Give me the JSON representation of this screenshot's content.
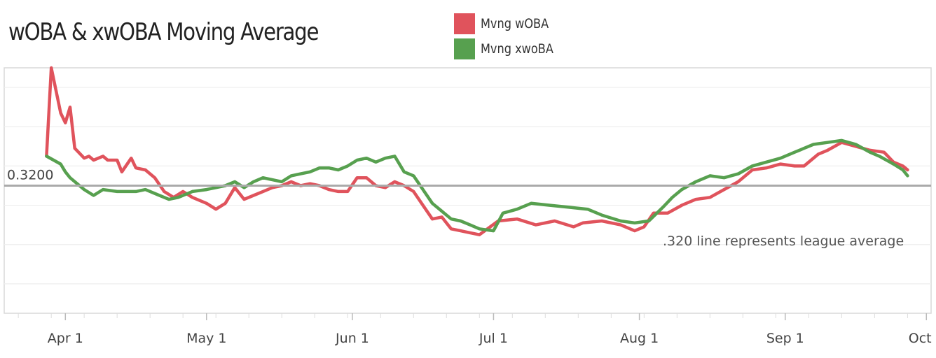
{
  "chart_data": {
    "type": "line",
    "title": "wOBA & xwOBA Moving Average",
    "xlabel": "",
    "ylabel": "",
    "x_ticks": [
      "Apr 1",
      "May 1",
      "Jun 1",
      "Jul 1",
      "Aug 1",
      "Sep 1",
      "Oct 1"
    ],
    "xlim": [
      "2020-03-19",
      "2020-10-02"
    ],
    "ylim": [
      0.255,
      0.38
    ],
    "grid": "horizontal",
    "legend_position": "top-center",
    "reference_line": {
      "value": 0.32,
      "label": "0.3200",
      "color": "#aaaaaa"
    },
    "annotation": ".320 line represents league average",
    "series": [
      {
        "name": "Mvng wOBA",
        "color": "#e0535c",
        "points": [
          [
            "2020-03-28",
            0.335
          ],
          [
            "2020-03-29",
            0.38
          ],
          [
            "2020-03-31",
            0.357
          ],
          [
            "2020-04-01",
            0.352
          ],
          [
            "2020-04-02",
            0.36
          ],
          [
            "2020-04-03",
            0.339
          ],
          [
            "2020-04-05",
            0.334
          ],
          [
            "2020-04-06",
            0.335
          ],
          [
            "2020-04-07",
            0.333
          ],
          [
            "2020-04-09",
            0.335
          ],
          [
            "2020-04-10",
            0.333
          ],
          [
            "2020-04-12",
            0.333
          ],
          [
            "2020-04-13",
            0.327
          ],
          [
            "2020-04-15",
            0.334
          ],
          [
            "2020-04-16",
            0.329
          ],
          [
            "2020-04-18",
            0.328
          ],
          [
            "2020-04-20",
            0.324
          ],
          [
            "2020-04-22",
            0.317
          ],
          [
            "2020-04-24",
            0.314
          ],
          [
            "2020-04-26",
            0.317
          ],
          [
            "2020-04-28",
            0.314
          ],
          [
            "2020-05-01",
            0.311
          ],
          [
            "2020-05-03",
            0.308
          ],
          [
            "2020-05-05",
            0.311
          ],
          [
            "2020-05-07",
            0.319
          ],
          [
            "2020-05-09",
            0.313
          ],
          [
            "2020-05-11",
            0.315
          ],
          [
            "2020-05-13",
            0.317
          ],
          [
            "2020-05-15",
            0.319
          ],
          [
            "2020-05-17",
            0.32
          ],
          [
            "2020-05-19",
            0.322
          ],
          [
            "2020-05-21",
            0.32
          ],
          [
            "2020-05-23",
            0.321
          ],
          [
            "2020-05-25",
            0.32
          ],
          [
            "2020-05-27",
            0.318
          ],
          [
            "2020-05-29",
            0.317
          ],
          [
            "2020-05-31",
            0.317
          ],
          [
            "2020-06-02",
            0.324
          ],
          [
            "2020-06-04",
            0.324
          ],
          [
            "2020-06-06",
            0.32
          ],
          [
            "2020-06-08",
            0.319
          ],
          [
            "2020-06-10",
            0.322
          ],
          [
            "2020-06-12",
            0.32
          ],
          [
            "2020-06-14",
            0.317
          ],
          [
            "2020-06-16",
            0.31
          ],
          [
            "2020-06-18",
            0.303
          ],
          [
            "2020-06-20",
            0.304
          ],
          [
            "2020-06-22",
            0.298
          ],
          [
            "2020-06-24",
            0.297
          ],
          [
            "2020-06-26",
            0.296
          ],
          [
            "2020-06-28",
            0.295
          ],
          [
            "2020-07-02",
            0.302
          ],
          [
            "2020-07-06",
            0.303
          ],
          [
            "2020-07-10",
            0.3
          ],
          [
            "2020-07-14",
            0.302
          ],
          [
            "2020-07-18",
            0.299
          ],
          [
            "2020-07-20",
            0.301
          ],
          [
            "2020-07-24",
            0.302
          ],
          [
            "2020-07-28",
            0.3
          ],
          [
            "2020-07-31",
            0.297
          ],
          [
            "2020-08-02",
            0.299
          ],
          [
            "2020-08-04",
            0.306
          ],
          [
            "2020-08-07",
            0.306
          ],
          [
            "2020-08-10",
            0.31
          ],
          [
            "2020-08-13",
            0.313
          ],
          [
            "2020-08-16",
            0.314
          ],
          [
            "2020-08-19",
            0.318
          ],
          [
            "2020-08-22",
            0.322
          ],
          [
            "2020-08-25",
            0.328
          ],
          [
            "2020-08-28",
            0.329
          ],
          [
            "2020-08-31",
            0.331
          ],
          [
            "2020-09-03",
            0.33
          ],
          [
            "2020-09-05",
            0.33
          ],
          [
            "2020-09-08",
            0.336
          ],
          [
            "2020-09-10",
            0.338
          ],
          [
            "2020-09-13",
            0.342
          ],
          [
            "2020-09-16",
            0.34
          ],
          [
            "2020-09-19",
            0.338
          ],
          [
            "2020-09-22",
            0.337
          ],
          [
            "2020-09-24",
            0.332
          ],
          [
            "2020-09-26",
            0.33
          ],
          [
            "2020-09-27",
            0.328
          ]
        ]
      },
      {
        "name": "Mvng xwoBA",
        "color": "#57a04f",
        "points": [
          [
            "2020-03-28",
            0.335
          ],
          [
            "2020-03-31",
            0.331
          ],
          [
            "2020-04-01",
            0.327
          ],
          [
            "2020-04-02",
            0.324
          ],
          [
            "2020-04-05",
            0.318
          ],
          [
            "2020-04-07",
            0.315
          ],
          [
            "2020-04-09",
            0.318
          ],
          [
            "2020-04-12",
            0.317
          ],
          [
            "2020-04-14",
            0.317
          ],
          [
            "2020-04-16",
            0.317
          ],
          [
            "2020-04-18",
            0.318
          ],
          [
            "2020-04-21",
            0.315
          ],
          [
            "2020-04-23",
            0.313
          ],
          [
            "2020-04-25",
            0.314
          ],
          [
            "2020-04-28",
            0.317
          ],
          [
            "2020-05-01",
            0.318
          ],
          [
            "2020-05-03",
            0.319
          ],
          [
            "2020-05-05",
            0.32
          ],
          [
            "2020-05-07",
            0.322
          ],
          [
            "2020-05-09",
            0.319
          ],
          [
            "2020-05-11",
            0.322
          ],
          [
            "2020-05-13",
            0.324
          ],
          [
            "2020-05-15",
            0.323
          ],
          [
            "2020-05-17",
            0.322
          ],
          [
            "2020-05-19",
            0.325
          ],
          [
            "2020-05-21",
            0.326
          ],
          [
            "2020-05-23",
            0.327
          ],
          [
            "2020-05-25",
            0.329
          ],
          [
            "2020-05-27",
            0.329
          ],
          [
            "2020-05-29",
            0.328
          ],
          [
            "2020-05-31",
            0.33
          ],
          [
            "2020-06-02",
            0.333
          ],
          [
            "2020-06-04",
            0.334
          ],
          [
            "2020-06-06",
            0.332
          ],
          [
            "2020-06-08",
            0.334
          ],
          [
            "2020-06-10",
            0.335
          ],
          [
            "2020-06-12",
            0.327
          ],
          [
            "2020-06-14",
            0.325
          ],
          [
            "2020-06-16",
            0.318
          ],
          [
            "2020-06-18",
            0.311
          ],
          [
            "2020-06-20",
            0.307
          ],
          [
            "2020-06-22",
            0.303
          ],
          [
            "2020-06-24",
            0.302
          ],
          [
            "2020-06-26",
            0.3
          ],
          [
            "2020-06-28",
            0.298
          ],
          [
            "2020-07-01",
            0.297
          ],
          [
            "2020-07-03",
            0.306
          ],
          [
            "2020-07-06",
            0.308
          ],
          [
            "2020-07-09",
            0.311
          ],
          [
            "2020-07-13",
            0.31
          ],
          [
            "2020-07-17",
            0.309
          ],
          [
            "2020-07-21",
            0.308
          ],
          [
            "2020-07-24",
            0.305
          ],
          [
            "2020-07-28",
            0.302
          ],
          [
            "2020-07-31",
            0.301
          ],
          [
            "2020-08-03",
            0.302
          ],
          [
            "2020-08-06",
            0.309
          ],
          [
            "2020-08-08",
            0.314
          ],
          [
            "2020-08-10",
            0.318
          ],
          [
            "2020-08-13",
            0.322
          ],
          [
            "2020-08-16",
            0.325
          ],
          [
            "2020-08-19",
            0.324
          ],
          [
            "2020-08-22",
            0.326
          ],
          [
            "2020-08-25",
            0.33
          ],
          [
            "2020-08-28",
            0.332
          ],
          [
            "2020-08-31",
            0.334
          ],
          [
            "2020-09-03",
            0.337
          ],
          [
            "2020-09-05",
            0.339
          ],
          [
            "2020-09-07",
            0.341
          ],
          [
            "2020-09-10",
            0.342
          ],
          [
            "2020-09-13",
            0.343
          ],
          [
            "2020-09-16",
            0.341
          ],
          [
            "2020-09-19",
            0.337
          ],
          [
            "2020-09-21",
            0.335
          ],
          [
            "2020-09-24",
            0.331
          ],
          [
            "2020-09-26",
            0.328
          ],
          [
            "2020-09-27",
            0.325
          ]
        ]
      }
    ]
  }
}
